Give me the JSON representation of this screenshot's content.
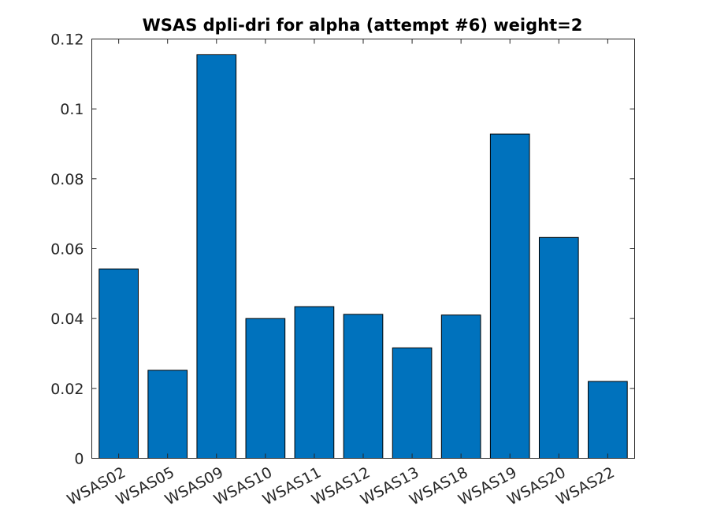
{
  "chart_data": {
    "type": "bar",
    "title": "WSAS dpli-dri for alpha (attempt #6) weight=2",
    "xlabel": "",
    "ylabel": "",
    "categories": [
      "WSAS02",
      "WSAS05",
      "WSAS09",
      "WSAS10",
      "WSAS11",
      "WSAS12",
      "WSAS13",
      "WSAS18",
      "WSAS19",
      "WSAS20",
      "WSAS22"
    ],
    "values": [
      0.0542,
      0.0252,
      0.1155,
      0.04,
      0.0434,
      0.0412,
      0.0316,
      0.041,
      0.0928,
      0.0632,
      0.022
    ],
    "ylim": [
      0,
      0.12
    ],
    "yticks": [
      "0",
      "0.02",
      "0.04",
      "0.06",
      "0.08",
      "0.1",
      "0.12"
    ],
    "bar_color": "#0072BD",
    "grid": false,
    "box": true
  }
}
